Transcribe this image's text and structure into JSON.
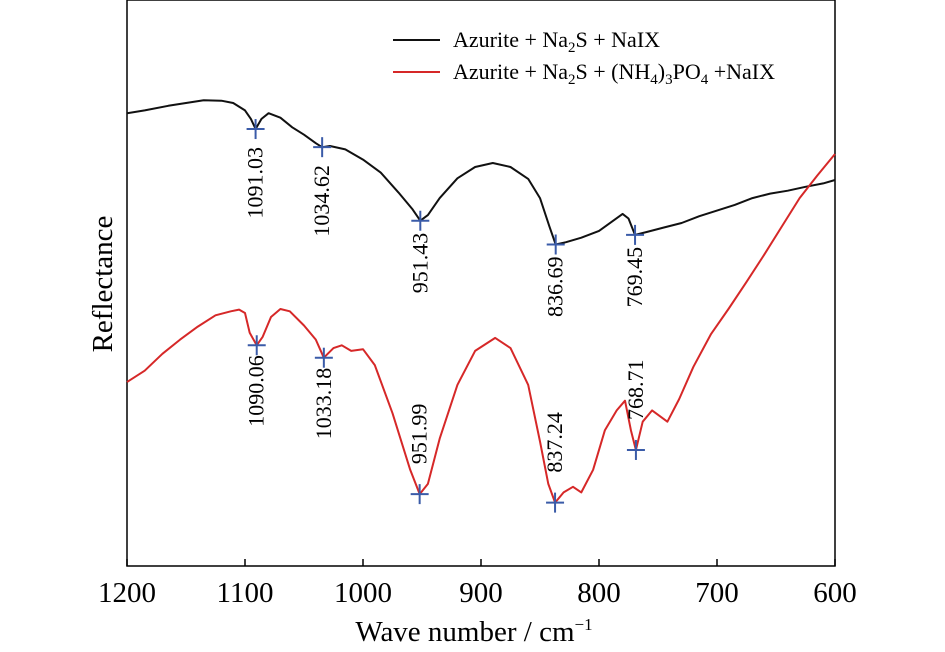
{
  "chart_data": {
    "type": "line",
    "xlabel": "Wave number / cm⁻¹",
    "ylabel": "Reflectance",
    "xlim": [
      1200,
      600
    ],
    "x_ticks": [
      1200,
      1100,
      1000,
      900,
      800,
      700,
      600
    ],
    "x_reversed": true,
    "y_ticks_shown": false,
    "legend_placement": "top-right",
    "series": [
      {
        "name": "Azurite + Na2S + NaIX",
        "legend_parts": [
          {
            "t": "Azurite + Na"
          },
          {
            "t": "2",
            "sub": true
          },
          {
            "t": "S + NaIX"
          }
        ],
        "color": "#111111",
        "points": [
          [
            1200,
            0.8
          ],
          [
            1185,
            0.805
          ],
          [
            1165,
            0.813
          ],
          [
            1150,
            0.818
          ],
          [
            1135,
            0.823
          ],
          [
            1120,
            0.822
          ],
          [
            1110,
            0.818
          ],
          [
            1100,
            0.805
          ],
          [
            1095,
            0.79
          ],
          [
            1091.03,
            0.772
          ],
          [
            1086,
            0.79
          ],
          [
            1080,
            0.8
          ],
          [
            1070,
            0.792
          ],
          [
            1060,
            0.775
          ],
          [
            1050,
            0.762
          ],
          [
            1040,
            0.747
          ],
          [
            1034.62,
            0.74
          ],
          [
            1028,
            0.742
          ],
          [
            1015,
            0.736
          ],
          [
            1000,
            0.718
          ],
          [
            985,
            0.695
          ],
          [
            970,
            0.66
          ],
          [
            958,
            0.63
          ],
          [
            951.43,
            0.61
          ],
          [
            945,
            0.62
          ],
          [
            935,
            0.65
          ],
          [
            920,
            0.685
          ],
          [
            905,
            0.705
          ],
          [
            890,
            0.712
          ],
          [
            875,
            0.705
          ],
          [
            860,
            0.684
          ],
          [
            850,
            0.65
          ],
          [
            842,
            0.6
          ],
          [
            836.69,
            0.568
          ],
          [
            828,
            0.572
          ],
          [
            815,
            0.58
          ],
          [
            800,
            0.592
          ],
          [
            790,
            0.607
          ],
          [
            780,
            0.622
          ],
          [
            775,
            0.614
          ],
          [
            769.45,
            0.585
          ],
          [
            760,
            0.59
          ],
          [
            745,
            0.598
          ],
          [
            730,
            0.606
          ],
          [
            715,
            0.618
          ],
          [
            700,
            0.628
          ],
          [
            685,
            0.638
          ],
          [
            670,
            0.65
          ],
          [
            655,
            0.658
          ],
          [
            640,
            0.663
          ],
          [
            625,
            0.67
          ],
          [
            610,
            0.676
          ],
          [
            600,
            0.682
          ]
        ],
        "peaks": [
          {
            "x": 1091.03,
            "label": "1091.03"
          },
          {
            "x": 1034.62,
            "label": "1034.62"
          },
          {
            "x": 951.43,
            "label": "951.43"
          },
          {
            "x": 836.69,
            "label": "836.69"
          },
          {
            "x": 769.45,
            "label": "769.45"
          }
        ]
      },
      {
        "name": "Azurite + Na2S + (NH4)3PO4 +NaIX",
        "legend_parts": [
          {
            "t": "Azurite + Na"
          },
          {
            "t": "2",
            "sub": true
          },
          {
            "t": "S + (NH"
          },
          {
            "t": "4",
            "sub": true
          },
          {
            "t": ")"
          },
          {
            "t": "3",
            "sub": true
          },
          {
            "t": "PO"
          },
          {
            "t": "4",
            "sub": true
          },
          {
            "t": " +NaIX"
          }
        ],
        "color": "#d62828",
        "points": [
          [
            1200,
            0.325
          ],
          [
            1185,
            0.345
          ],
          [
            1170,
            0.375
          ],
          [
            1155,
            0.4
          ],
          [
            1140,
            0.423
          ],
          [
            1125,
            0.443
          ],
          [
            1112,
            0.45
          ],
          [
            1105,
            0.453
          ],
          [
            1100,
            0.447
          ],
          [
            1096,
            0.412
          ],
          [
            1090.06,
            0.39
          ],
          [
            1085,
            0.405
          ],
          [
            1078,
            0.44
          ],
          [
            1070,
            0.454
          ],
          [
            1062,
            0.45
          ],
          [
            1050,
            0.425
          ],
          [
            1040,
            0.4
          ],
          [
            1033.18,
            0.368
          ],
          [
            1025,
            0.385
          ],
          [
            1018,
            0.39
          ],
          [
            1010,
            0.38
          ],
          [
            1000,
            0.383
          ],
          [
            990,
            0.355
          ],
          [
            975,
            0.27
          ],
          [
            960,
            0.17
          ],
          [
            951.99,
            0.127
          ],
          [
            945,
            0.145
          ],
          [
            935,
            0.225
          ],
          [
            920,
            0.32
          ],
          [
            905,
            0.38
          ],
          [
            888,
            0.403
          ],
          [
            875,
            0.385
          ],
          [
            860,
            0.32
          ],
          [
            850,
            0.22
          ],
          [
            843,
            0.145
          ],
          [
            837.24,
            0.112
          ],
          [
            830,
            0.13
          ],
          [
            822,
            0.14
          ],
          [
            815,
            0.13
          ],
          [
            805,
            0.17
          ],
          [
            795,
            0.24
          ],
          [
            785,
            0.275
          ],
          [
            778,
            0.292
          ],
          [
            773,
            0.24
          ],
          [
            768.71,
            0.205
          ],
          [
            763,
            0.255
          ],
          [
            755,
            0.275
          ],
          [
            742,
            0.255
          ],
          [
            732,
            0.295
          ],
          [
            720,
            0.352
          ],
          [
            705,
            0.41
          ],
          [
            690,
            0.455
          ],
          [
            675,
            0.502
          ],
          [
            660,
            0.55
          ],
          [
            645,
            0.6
          ],
          [
            630,
            0.65
          ],
          [
            615,
            0.69
          ],
          [
            600,
            0.728
          ]
        ],
        "peaks": [
          {
            "x": 1090.06,
            "label": "1090.06"
          },
          {
            "x": 1033.18,
            "label": "1033.18"
          },
          {
            "x": 951.99,
            "label": "951.99"
          },
          {
            "x": 837.24,
            "label": "837.24"
          },
          {
            "x": 768.71,
            "label": "768.71"
          }
        ]
      }
    ],
    "marker_color": "#3a5ba8"
  }
}
